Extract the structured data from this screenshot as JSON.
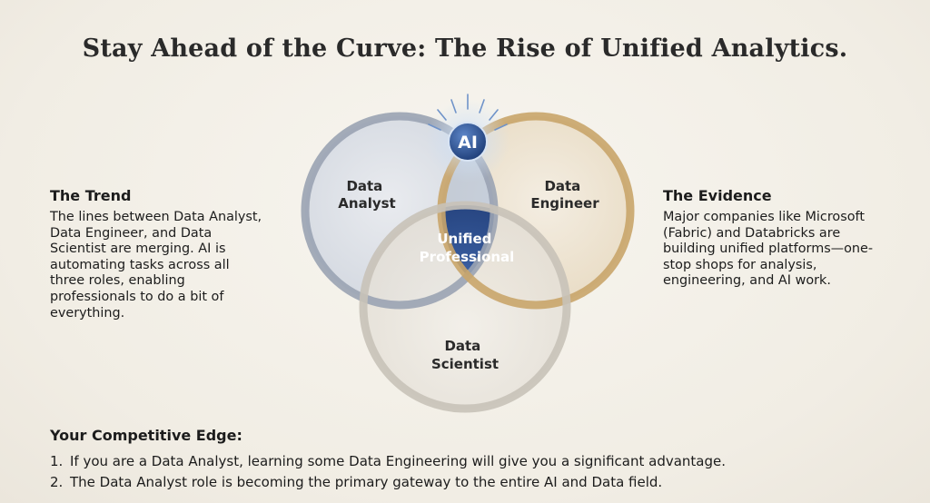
{
  "title": "Stay Ahead of the Curve: The Rise of Unified Analytics.",
  "trend": {
    "heading": "The Trend",
    "lines": [
      "The lines between Data Analyst,",
      "Data Engineer, and Data",
      "Scientist are merging. AI is",
      "automating tasks across all",
      "three roles, enabling",
      "professionals to do a bit of",
      "everything."
    ]
  },
  "evidence": {
    "heading": "The Evidence",
    "lines": [
      "Major companies like Microsoft",
      "(Fabric) and Databricks are",
      "building unified platforms—one-",
      "stop shops for analysis,",
      "engineering, and AI work."
    ]
  },
  "venn": {
    "ai_badge": "AI",
    "analyst": [
      "Data",
      "Analyst"
    ],
    "engineer": [
      "Data",
      "Engineer"
    ],
    "scientist": [
      "Data",
      "Scientist"
    ],
    "center": [
      "Unified",
      "Professional"
    ],
    "colors": {
      "analyst_ring": "#9aa3b3",
      "engineer_ring": "#c9a56a",
      "scientist_ring": "#c8c2b8",
      "center_fill": "#1e3f7e",
      "ai_fill": "#2a4f8f"
    }
  },
  "edge": {
    "heading": "Your Competitive Edge:",
    "items": [
      {
        "num": "1.",
        "text": "If you are a Data Analyst, learning some Data Engineering will give you a significant advantage."
      },
      {
        "num": "2.",
        "text": "The Data Analyst role is becoming the primary gateway to the entire AI and Data field."
      }
    ]
  }
}
